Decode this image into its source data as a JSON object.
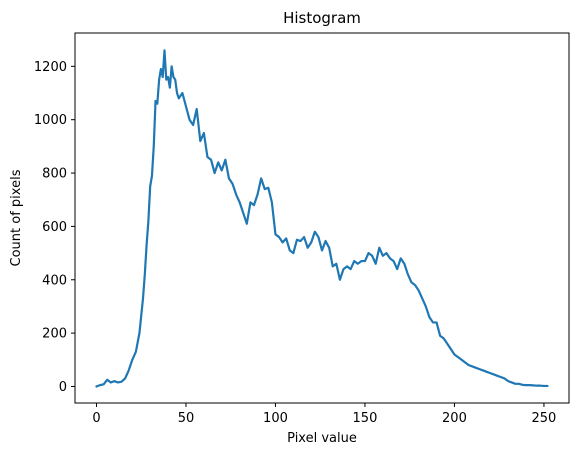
{
  "chart_data": {
    "type": "line",
    "title": "Histogram",
    "xlabel": "Pixel value",
    "ylabel": "Count of pixels",
    "xlim": [
      -12,
      264
    ],
    "ylim": [
      -62,
      1325
    ],
    "xticks": [
      0,
      50,
      100,
      150,
      200,
      250
    ],
    "yticks": [
      0,
      200,
      400,
      600,
      800,
      1000,
      1200
    ],
    "grid": false,
    "line_color": "#1f77b4",
    "series": [
      {
        "x": [
          0,
          2,
          4,
          6,
          8,
          10,
          12,
          14,
          16,
          18,
          20,
          22,
          24,
          26,
          27,
          28,
          29,
          30,
          31,
          32,
          33,
          34,
          35,
          36,
          37,
          38,
          39,
          40,
          41,
          42,
          43,
          44,
          45,
          46,
          48,
          50,
          52,
          54,
          56,
          58,
          60,
          62,
          64,
          66,
          68,
          70,
          72,
          74,
          76,
          78,
          80,
          82,
          84,
          86,
          88,
          90,
          92,
          94,
          96,
          98,
          100,
          102,
          104,
          106,
          108,
          110,
          112,
          114,
          116,
          118,
          120,
          122,
          124,
          126,
          128,
          130,
          132,
          134,
          136,
          138,
          140,
          142,
          144,
          146,
          148,
          150,
          152,
          154,
          156,
          158,
          160,
          162,
          164,
          166,
          168,
          170,
          172,
          174,
          176,
          178,
          180,
          182,
          184,
          186,
          188,
          190,
          192,
          194,
          196,
          198,
          200,
          202,
          204,
          206,
          208,
          210,
          212,
          214,
          216,
          218,
          220,
          222,
          224,
          226,
          228,
          230,
          232,
          234,
          236,
          238,
          240,
          242,
          244,
          246,
          248,
          250,
          252
        ],
        "y": [
          0,
          5,
          8,
          25,
          15,
          20,
          15,
          18,
          30,
          60,
          100,
          130,
          200,
          330,
          420,
          530,
          620,
          750,
          790,
          900,
          1070,
          1060,
          1150,
          1190,
          1160,
          1260,
          1150,
          1160,
          1120,
          1200,
          1160,
          1150,
          1100,
          1080,
          1100,
          1050,
          1000,
          980,
          1040,
          920,
          950,
          860,
          850,
          800,
          840,
          810,
          850,
          780,
          760,
          720,
          690,
          650,
          610,
          690,
          680,
          720,
          780,
          740,
          745,
          690,
          570,
          560,
          540,
          555,
          510,
          500,
          550,
          545,
          560,
          520,
          540,
          580,
          560,
          510,
          545,
          520,
          450,
          460,
          400,
          440,
          450,
          440,
          470,
          460,
          470,
          470,
          500,
          490,
          460,
          520,
          490,
          500,
          480,
          470,
          440,
          480,
          460,
          420,
          390,
          380,
          360,
          330,
          300,
          260,
          240,
          240,
          190,
          180,
          160,
          140,
          120,
          110,
          100,
          90,
          80,
          75,
          70,
          65,
          60,
          55,
          50,
          45,
          40,
          35,
          30,
          20,
          15,
          10,
          10,
          6,
          5,
          5,
          4,
          3,
          3,
          2,
          2
        ]
      }
    ]
  }
}
